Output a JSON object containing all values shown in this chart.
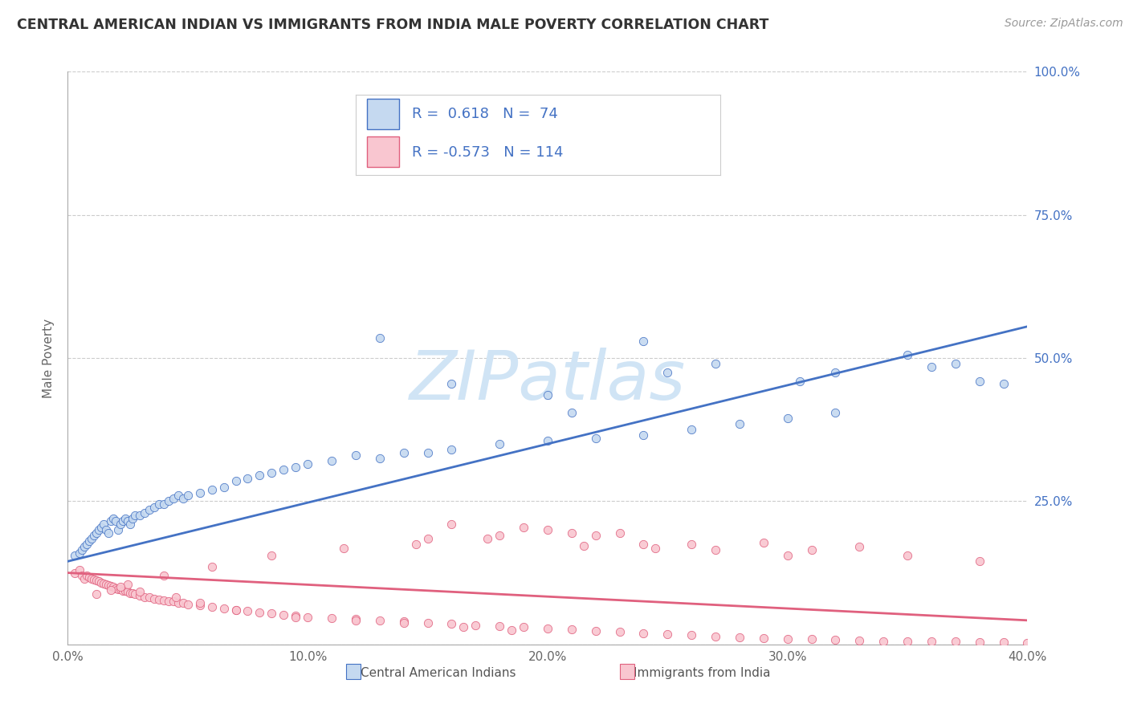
{
  "title": "CENTRAL AMERICAN INDIAN VS IMMIGRANTS FROM INDIA MALE POVERTY CORRELATION CHART",
  "source": "Source: ZipAtlas.com",
  "ylabel": "Male Poverty",
  "xlim": [
    0.0,
    0.4
  ],
  "ylim": [
    0.0,
    1.0
  ],
  "yticks": [
    0.0,
    0.25,
    0.5,
    0.75,
    1.0
  ],
  "ytick_labels_right": [
    "",
    "25.0%",
    "50.0%",
    "75.0%",
    "100.0%"
  ],
  "xticks": [
    0.0,
    0.1,
    0.2,
    0.3,
    0.4
  ],
  "xtick_labels": [
    "0.0%",
    "10.0%",
    "20.0%",
    "30.0%",
    "40.0%"
  ],
  "color_blue_fill": "#c5d9f0",
  "color_blue_edge": "#4472C4",
  "color_pink_fill": "#f9c6d0",
  "color_pink_edge": "#e0607e",
  "line_blue_color": "#4472C4",
  "line_pink_color": "#e0607e",
  "blue_line_x": [
    0.0,
    0.4
  ],
  "blue_line_y": [
    0.145,
    0.555
  ],
  "pink_line_x": [
    0.0,
    0.4
  ],
  "pink_line_y": [
    0.125,
    0.042
  ],
  "watermark_text": "ZIPatlas",
  "watermark_color": "#d0e4f5",
  "legend1_label": "Central American Indians",
  "legend2_label": "Immigrants from India",
  "bg_color": "#ffffff",
  "grid_color": "#cccccc",
  "right_tick_color": "#4472C4",
  "title_color": "#333333",
  "source_color": "#999999",
  "ylabel_color": "#666666",
  "xtick_color": "#666666",
  "legend_R1": "R =  0.618   N =  74",
  "legend_R2": "R = -0.573   N = 114",
  "blue_x": [
    0.003,
    0.005,
    0.006,
    0.007,
    0.008,
    0.009,
    0.01,
    0.011,
    0.012,
    0.013,
    0.014,
    0.015,
    0.016,
    0.017,
    0.018,
    0.019,
    0.02,
    0.021,
    0.022,
    0.023,
    0.024,
    0.025,
    0.026,
    0.027,
    0.028,
    0.03,
    0.032,
    0.034,
    0.036,
    0.038,
    0.04,
    0.042,
    0.044,
    0.046,
    0.048,
    0.05,
    0.055,
    0.06,
    0.065,
    0.07,
    0.075,
    0.08,
    0.085,
    0.09,
    0.095,
    0.1,
    0.11,
    0.12,
    0.13,
    0.14,
    0.15,
    0.16,
    0.18,
    0.2,
    0.22,
    0.24,
    0.26,
    0.28,
    0.3,
    0.32,
    0.16,
    0.2,
    0.24,
    0.13,
    0.32,
    0.38,
    0.36,
    0.35,
    0.37,
    0.39,
    0.305,
    0.27,
    0.25,
    0.21
  ],
  "blue_y": [
    0.155,
    0.16,
    0.165,
    0.17,
    0.175,
    0.18,
    0.185,
    0.19,
    0.195,
    0.2,
    0.205,
    0.21,
    0.2,
    0.195,
    0.215,
    0.22,
    0.215,
    0.2,
    0.21,
    0.215,
    0.22,
    0.215,
    0.21,
    0.22,
    0.225,
    0.225,
    0.23,
    0.235,
    0.24,
    0.245,
    0.245,
    0.25,
    0.255,
    0.26,
    0.255,
    0.26,
    0.265,
    0.27,
    0.275,
    0.285,
    0.29,
    0.295,
    0.3,
    0.305,
    0.31,
    0.315,
    0.32,
    0.33,
    0.325,
    0.335,
    0.335,
    0.34,
    0.35,
    0.355,
    0.36,
    0.365,
    0.375,
    0.385,
    0.395,
    0.405,
    0.455,
    0.435,
    0.53,
    0.535,
    0.475,
    0.46,
    0.485,
    0.505,
    0.49,
    0.455,
    0.46,
    0.49,
    0.475,
    0.405
  ],
  "pink_x": [
    0.003,
    0.005,
    0.006,
    0.007,
    0.008,
    0.009,
    0.01,
    0.011,
    0.012,
    0.013,
    0.014,
    0.015,
    0.016,
    0.017,
    0.018,
    0.019,
    0.02,
    0.021,
    0.022,
    0.023,
    0.024,
    0.025,
    0.026,
    0.027,
    0.028,
    0.03,
    0.032,
    0.034,
    0.036,
    0.038,
    0.04,
    0.042,
    0.044,
    0.046,
    0.048,
    0.05,
    0.055,
    0.06,
    0.065,
    0.07,
    0.075,
    0.08,
    0.085,
    0.09,
    0.095,
    0.1,
    0.11,
    0.12,
    0.13,
    0.14,
    0.15,
    0.16,
    0.17,
    0.18,
    0.19,
    0.2,
    0.21,
    0.22,
    0.23,
    0.24,
    0.25,
    0.26,
    0.27,
    0.28,
    0.29,
    0.3,
    0.31,
    0.32,
    0.33,
    0.34,
    0.35,
    0.36,
    0.37,
    0.38,
    0.39,
    0.4,
    0.15,
    0.18,
    0.21,
    0.24,
    0.27,
    0.3,
    0.2,
    0.23,
    0.16,
    0.19,
    0.22,
    0.26,
    0.31,
    0.35,
    0.38,
    0.33,
    0.29,
    0.245,
    0.215,
    0.175,
    0.145,
    0.115,
    0.085,
    0.06,
    0.04,
    0.025,
    0.018,
    0.012,
    0.022,
    0.03,
    0.045,
    0.055,
    0.07,
    0.095,
    0.12,
    0.14,
    0.165,
    0.185
  ],
  "pink_y": [
    0.125,
    0.13,
    0.12,
    0.115,
    0.12,
    0.118,
    0.115,
    0.113,
    0.112,
    0.11,
    0.108,
    0.106,
    0.105,
    0.103,
    0.102,
    0.1,
    0.098,
    0.097,
    0.096,
    0.094,
    0.093,
    0.092,
    0.09,
    0.089,
    0.088,
    0.085,
    0.083,
    0.082,
    0.08,
    0.078,
    0.077,
    0.076,
    0.075,
    0.073,
    0.072,
    0.07,
    0.068,
    0.065,
    0.063,
    0.06,
    0.058,
    0.056,
    0.054,
    0.052,
    0.05,
    0.048,
    0.046,
    0.044,
    0.042,
    0.04,
    0.038,
    0.036,
    0.034,
    0.032,
    0.03,
    0.028,
    0.026,
    0.024,
    0.022,
    0.02,
    0.018,
    0.016,
    0.014,
    0.013,
    0.011,
    0.01,
    0.009,
    0.008,
    0.007,
    0.006,
    0.006,
    0.005,
    0.005,
    0.004,
    0.004,
    0.003,
    0.185,
    0.19,
    0.195,
    0.175,
    0.165,
    0.155,
    0.2,
    0.195,
    0.21,
    0.205,
    0.19,
    0.175,
    0.165,
    0.155,
    0.145,
    0.17,
    0.178,
    0.168,
    0.172,
    0.185,
    0.175,
    0.168,
    0.155,
    0.135,
    0.12,
    0.105,
    0.095,
    0.088,
    0.1,
    0.092,
    0.082,
    0.072,
    0.06,
    0.048,
    0.042,
    0.038,
    0.03,
    0.025
  ]
}
